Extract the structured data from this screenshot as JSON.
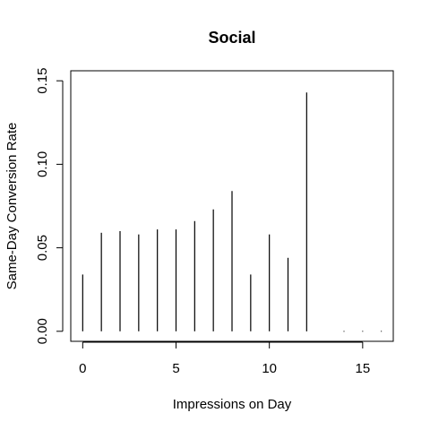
{
  "chart_data": {
    "type": "bar",
    "title": "Social",
    "xlabel": "Impressions on Day",
    "ylabel": "Same-Day Conversion Rate",
    "x": [
      0,
      1,
      2,
      3,
      4,
      5,
      6,
      7,
      8,
      9,
      10,
      11,
      12,
      13,
      14,
      15,
      16
    ],
    "values": [
      0.034,
      0.059,
      0.06,
      0.058,
      0.061,
      0.061,
      0.066,
      0.073,
      0.084,
      0.034,
      0.058,
      0.044,
      0.143,
      null,
      0,
      0,
      0
    ],
    "xlim": [
      -0.64,
      16.64
    ],
    "ylim": [
      -0.006,
      0.156
    ],
    "xticks": [
      0,
      5,
      10,
      15
    ],
    "xtick_labels": [
      "0",
      "5",
      "10",
      "15"
    ],
    "yticks": [
      0,
      0.05,
      0.1,
      0.15
    ],
    "ytick_labels": [
      "0.00",
      "0.05",
      "0.10",
      "0.15"
    ],
    "grid": false,
    "legend": "none",
    "line_color": "#000000"
  }
}
